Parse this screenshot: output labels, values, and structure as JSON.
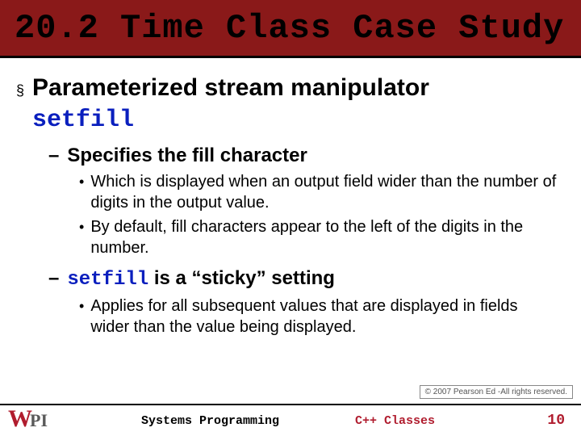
{
  "title": "20.2 Time Class Case Study",
  "main": {
    "bullet_glyph": "§",
    "line1_prefix": "Parameterized stream manipulator",
    "line1_keyword": "setfill"
  },
  "sub1": {
    "text": "Specifies the fill character"
  },
  "sub1_detail": {
    "d1": "Which is displayed when an output field wider than the number of digits in the output value.",
    "d2": "By default, fill characters appear to the left of the digits in the number."
  },
  "sub2": {
    "keyword": "setfill",
    "rest": " is a “sticky” setting"
  },
  "sub2_detail": {
    "d1": "Applies for all subsequent values that are displayed in fields wider than the value being displayed."
  },
  "copyright": "© 2007 Pearson Ed -All rights reserved.",
  "footer": {
    "mid": "Systems Programming",
    "topic": "C++ Classes",
    "page": "10"
  },
  "logo": {
    "w": "W",
    "pi": "PI"
  }
}
